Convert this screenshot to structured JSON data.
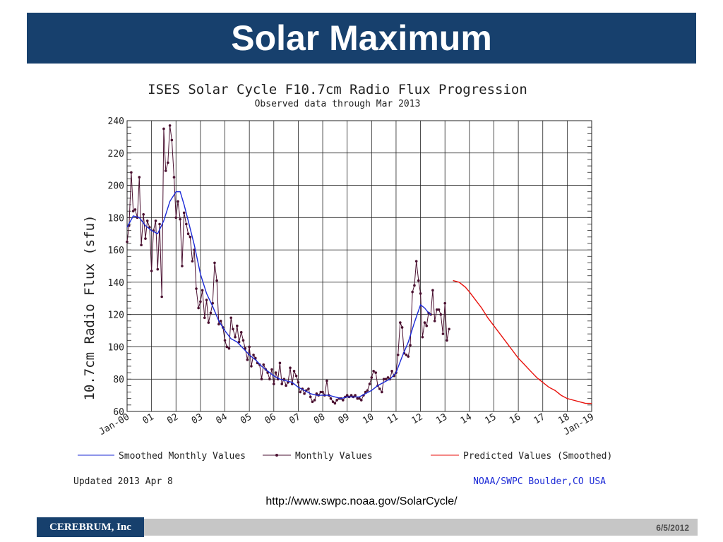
{
  "slide": {
    "title": "Solar Maximum",
    "source_url": "http://www.swpc.noaa.gov/SolarCycle/",
    "footer_brand": "CEREBRUM, Inc",
    "footer_date": "6/5/2012"
  },
  "colors": {
    "title_bar": "#17406d",
    "smoothed": "#1c2ad6",
    "monthly": "#4a1030",
    "predicted": "#e8120c",
    "grid": "#222222"
  },
  "chart_data": {
    "type": "line",
    "title": "ISES Solar Cycle F10.7cm Radio Flux Progression",
    "subtitle": "Observed data through Mar 2013",
    "ylabel": "10.7cm Radio Flux (sfu)",
    "xlabel": "",
    "ylim": [
      60,
      240
    ],
    "xlim": [
      2000,
      2019
    ],
    "yticks": [
      60,
      80,
      100,
      120,
      140,
      160,
      180,
      200,
      220,
      240
    ],
    "xticks": [
      {
        "x": 2000,
        "label": "Jan-00"
      },
      {
        "x": 2001,
        "label": "01"
      },
      {
        "x": 2002,
        "label": "02"
      },
      {
        "x": 2003,
        "label": "03"
      },
      {
        "x": 2004,
        "label": "04"
      },
      {
        "x": 2005,
        "label": "05"
      },
      {
        "x": 2006,
        "label": "06"
      },
      {
        "x": 2007,
        "label": "07"
      },
      {
        "x": 2008,
        "label": "08"
      },
      {
        "x": 2009,
        "label": "09"
      },
      {
        "x": 2010,
        "label": "10"
      },
      {
        "x": 2011,
        "label": "11"
      },
      {
        "x": 2012,
        "label": "12"
      },
      {
        "x": 2013,
        "label": "13"
      },
      {
        "x": 2014,
        "label": "14"
      },
      {
        "x": 2015,
        "label": "15"
      },
      {
        "x": 2016,
        "label": "16"
      },
      {
        "x": 2017,
        "label": "17"
      },
      {
        "x": 2018,
        "label": "18"
      },
      {
        "x": 2019,
        "label": "Jan-19"
      }
    ],
    "legend": {
      "smoothed": "Smoothed Monthly Values",
      "monthly": "Monthly Values",
      "predicted": "Predicted Values (Smoothed)"
    },
    "updated": "Updated 2013 Apr  8",
    "credit": "NOAA/SWPC Boulder,CO USA",
    "series": [
      {
        "name": "Monthly Values",
        "points": [
          [
            2000.0,
            165
          ],
          [
            2000.08,
            175
          ],
          [
            2000.17,
            208
          ],
          [
            2000.25,
            184
          ],
          [
            2000.33,
            185
          ],
          [
            2000.42,
            180
          ],
          [
            2000.5,
            205
          ],
          [
            2000.58,
            163
          ],
          [
            2000.67,
            182
          ],
          [
            2000.75,
            167
          ],
          [
            2000.83,
            178
          ],
          [
            2000.92,
            174
          ],
          [
            2001.0,
            147
          ],
          [
            2001.08,
            172
          ],
          [
            2001.17,
            178
          ],
          [
            2001.25,
            148
          ],
          [
            2001.33,
            176
          ],
          [
            2001.42,
            131
          ],
          [
            2001.5,
            235
          ],
          [
            2001.58,
            209
          ],
          [
            2001.67,
            214
          ],
          [
            2001.75,
            237
          ],
          [
            2001.83,
            228
          ],
          [
            2001.92,
            205
          ],
          [
            2002.0,
            180
          ],
          [
            2002.08,
            190
          ],
          [
            2002.17,
            179
          ],
          [
            2002.25,
            150
          ],
          [
            2002.33,
            183
          ],
          [
            2002.42,
            176
          ],
          [
            2002.5,
            170
          ],
          [
            2002.58,
            168
          ],
          [
            2002.67,
            153
          ],
          [
            2002.75,
            160
          ],
          [
            2002.83,
            136
          ],
          [
            2002.92,
            124
          ],
          [
            2003.0,
            128
          ],
          [
            2003.08,
            135
          ],
          [
            2003.17,
            118
          ],
          [
            2003.25,
            129
          ],
          [
            2003.33,
            115
          ],
          [
            2003.42,
            121
          ],
          [
            2003.5,
            127
          ],
          [
            2003.58,
            152
          ],
          [
            2003.67,
            141
          ],
          [
            2003.75,
            114
          ],
          [
            2003.83,
            116
          ],
          [
            2003.92,
            112
          ],
          [
            2004.0,
            104
          ],
          [
            2004.08,
            100
          ],
          [
            2004.17,
            99
          ],
          [
            2004.25,
            118
          ],
          [
            2004.33,
            111
          ],
          [
            2004.42,
            106
          ],
          [
            2004.5,
            113
          ],
          [
            2004.58,
            103
          ],
          [
            2004.67,
            109
          ],
          [
            2004.75,
            104
          ],
          [
            2004.83,
            99
          ],
          [
            2004.92,
            92
          ],
          [
            2005.0,
            100
          ],
          [
            2005.08,
            88
          ],
          [
            2005.17,
            95
          ],
          [
            2005.25,
            93
          ],
          [
            2005.33,
            90
          ],
          [
            2005.42,
            89
          ],
          [
            2005.5,
            80
          ],
          [
            2005.58,
            89
          ],
          [
            2005.67,
            86
          ],
          [
            2005.75,
            84
          ],
          [
            2005.83,
            80
          ],
          [
            2005.92,
            86
          ],
          [
            2006.0,
            77
          ],
          [
            2006.08,
            84
          ],
          [
            2006.17,
            80
          ],
          [
            2006.25,
            90
          ],
          [
            2006.33,
            77
          ],
          [
            2006.42,
            80
          ],
          [
            2006.5,
            76
          ],
          [
            2006.58,
            78
          ],
          [
            2006.67,
            87
          ],
          [
            2006.75,
            77
          ],
          [
            2006.83,
            85
          ],
          [
            2006.92,
            82
          ],
          [
            2007.0,
            78
          ],
          [
            2007.08,
            72
          ],
          [
            2007.17,
            74
          ],
          [
            2007.25,
            71
          ],
          [
            2007.33,
            73
          ],
          [
            2007.42,
            74
          ],
          [
            2007.5,
            69
          ],
          [
            2007.58,
            66
          ],
          [
            2007.67,
            67
          ],
          [
            2007.75,
            71
          ],
          [
            2007.83,
            70
          ],
          [
            2007.92,
            72
          ],
          [
            2008.0,
            72
          ],
          [
            2008.08,
            70
          ],
          [
            2008.17,
            79
          ],
          [
            2008.25,
            70
          ],
          [
            2008.33,
            68
          ],
          [
            2008.42,
            66
          ],
          [
            2008.5,
            65
          ],
          [
            2008.58,
            67
          ],
          [
            2008.67,
            68
          ],
          [
            2008.75,
            68
          ],
          [
            2008.83,
            67
          ],
          [
            2008.92,
            69
          ],
          [
            2009.0,
            70
          ],
          [
            2009.08,
            69
          ],
          [
            2009.17,
            70
          ],
          [
            2009.25,
            69
          ],
          [
            2009.33,
            70
          ],
          [
            2009.42,
            68
          ],
          [
            2009.5,
            68
          ],
          [
            2009.58,
            67
          ],
          [
            2009.67,
            70
          ],
          [
            2009.75,
            72
          ],
          [
            2009.83,
            73
          ],
          [
            2009.92,
            77
          ],
          [
            2010.0,
            81
          ],
          [
            2010.08,
            85
          ],
          [
            2010.17,
            84
          ],
          [
            2010.25,
            76
          ],
          [
            2010.33,
            74
          ],
          [
            2010.42,
            72
          ],
          [
            2010.5,
            80
          ],
          [
            2010.58,
            80
          ],
          [
            2010.67,
            81
          ],
          [
            2010.75,
            80
          ],
          [
            2010.83,
            85
          ],
          [
            2010.92,
            82
          ],
          [
            2011.0,
            84
          ],
          [
            2011.08,
            95
          ],
          [
            2011.17,
            115
          ],
          [
            2011.25,
            112
          ],
          [
            2011.33,
            96
          ],
          [
            2011.42,
            95
          ],
          [
            2011.5,
            94
          ],
          [
            2011.58,
            101
          ],
          [
            2011.67,
            134
          ],
          [
            2011.75,
            138
          ],
          [
            2011.83,
            153
          ],
          [
            2011.92,
            141
          ],
          [
            2012.0,
            133
          ],
          [
            2012.08,
            106
          ],
          [
            2012.17,
            115
          ],
          [
            2012.25,
            113
          ],
          [
            2012.33,
            121
          ],
          [
            2012.42,
            120
          ],
          [
            2012.5,
            135
          ],
          [
            2012.58,
            116
          ],
          [
            2012.67,
            123
          ],
          [
            2012.75,
            123
          ],
          [
            2012.83,
            120
          ],
          [
            2012.92,
            108
          ],
          [
            2013.0,
            127
          ],
          [
            2013.08,
            104
          ],
          [
            2013.17,
            111
          ]
        ]
      },
      {
        "name": "Smoothed Monthly Values",
        "points": [
          [
            2000.0,
            174
          ],
          [
            2000.25,
            181
          ],
          [
            2000.5,
            180
          ],
          [
            2000.75,
            175
          ],
          [
            2001.0,
            172
          ],
          [
            2001.25,
            170
          ],
          [
            2001.5,
            178
          ],
          [
            2001.75,
            190
          ],
          [
            2002.0,
            196
          ],
          [
            2002.17,
            196
          ],
          [
            2002.33,
            188
          ],
          [
            2002.5,
            178
          ],
          [
            2002.75,
            163
          ],
          [
            2003.0,
            145
          ],
          [
            2003.25,
            133
          ],
          [
            2003.5,
            125
          ],
          [
            2003.75,
            116
          ],
          [
            2004.0,
            110
          ],
          [
            2004.25,
            105
          ],
          [
            2004.5,
            103
          ],
          [
            2004.75,
            99
          ],
          [
            2005.0,
            95
          ],
          [
            2005.25,
            92
          ],
          [
            2005.5,
            88
          ],
          [
            2005.75,
            85
          ],
          [
            2006.0,
            82
          ],
          [
            2006.25,
            80
          ],
          [
            2006.5,
            79
          ],
          [
            2006.75,
            78
          ],
          [
            2007.0,
            75
          ],
          [
            2007.25,
            73
          ],
          [
            2007.5,
            71
          ],
          [
            2007.75,
            70
          ],
          [
            2008.0,
            70
          ],
          [
            2008.25,
            70
          ],
          [
            2008.5,
            69
          ],
          [
            2008.75,
            68
          ],
          [
            2009.0,
            69
          ],
          [
            2009.25,
            69
          ],
          [
            2009.5,
            69
          ],
          [
            2009.75,
            71
          ],
          [
            2010.0,
            73
          ],
          [
            2010.25,
            76
          ],
          [
            2010.5,
            78
          ],
          [
            2010.75,
            80
          ],
          [
            2011.0,
            84
          ],
          [
            2011.25,
            94
          ],
          [
            2011.5,
            103
          ],
          [
            2011.75,
            115
          ],
          [
            2012.0,
            126
          ],
          [
            2012.17,
            124
          ],
          [
            2012.33,
            121
          ],
          [
            2012.42,
            120
          ]
        ]
      },
      {
        "name": "Predicted Values (Smoothed)",
        "points": [
          [
            2013.33,
            141
          ],
          [
            2013.58,
            140
          ],
          [
            2013.83,
            137
          ],
          [
            2014.0,
            134
          ],
          [
            2014.25,
            129
          ],
          [
            2014.5,
            124
          ],
          [
            2014.75,
            118
          ],
          [
            2015.0,
            113
          ],
          [
            2015.25,
            108
          ],
          [
            2015.5,
            103
          ],
          [
            2015.75,
            98
          ],
          [
            2016.0,
            93
          ],
          [
            2016.25,
            89
          ],
          [
            2016.5,
            85
          ],
          [
            2016.75,
            81
          ],
          [
            2017.0,
            78
          ],
          [
            2017.25,
            75
          ],
          [
            2017.5,
            73
          ],
          [
            2017.75,
            70
          ],
          [
            2018.0,
            68
          ],
          [
            2018.25,
            67
          ],
          [
            2018.5,
            66
          ],
          [
            2018.75,
            65
          ],
          [
            2019.0,
            65
          ]
        ]
      }
    ]
  }
}
